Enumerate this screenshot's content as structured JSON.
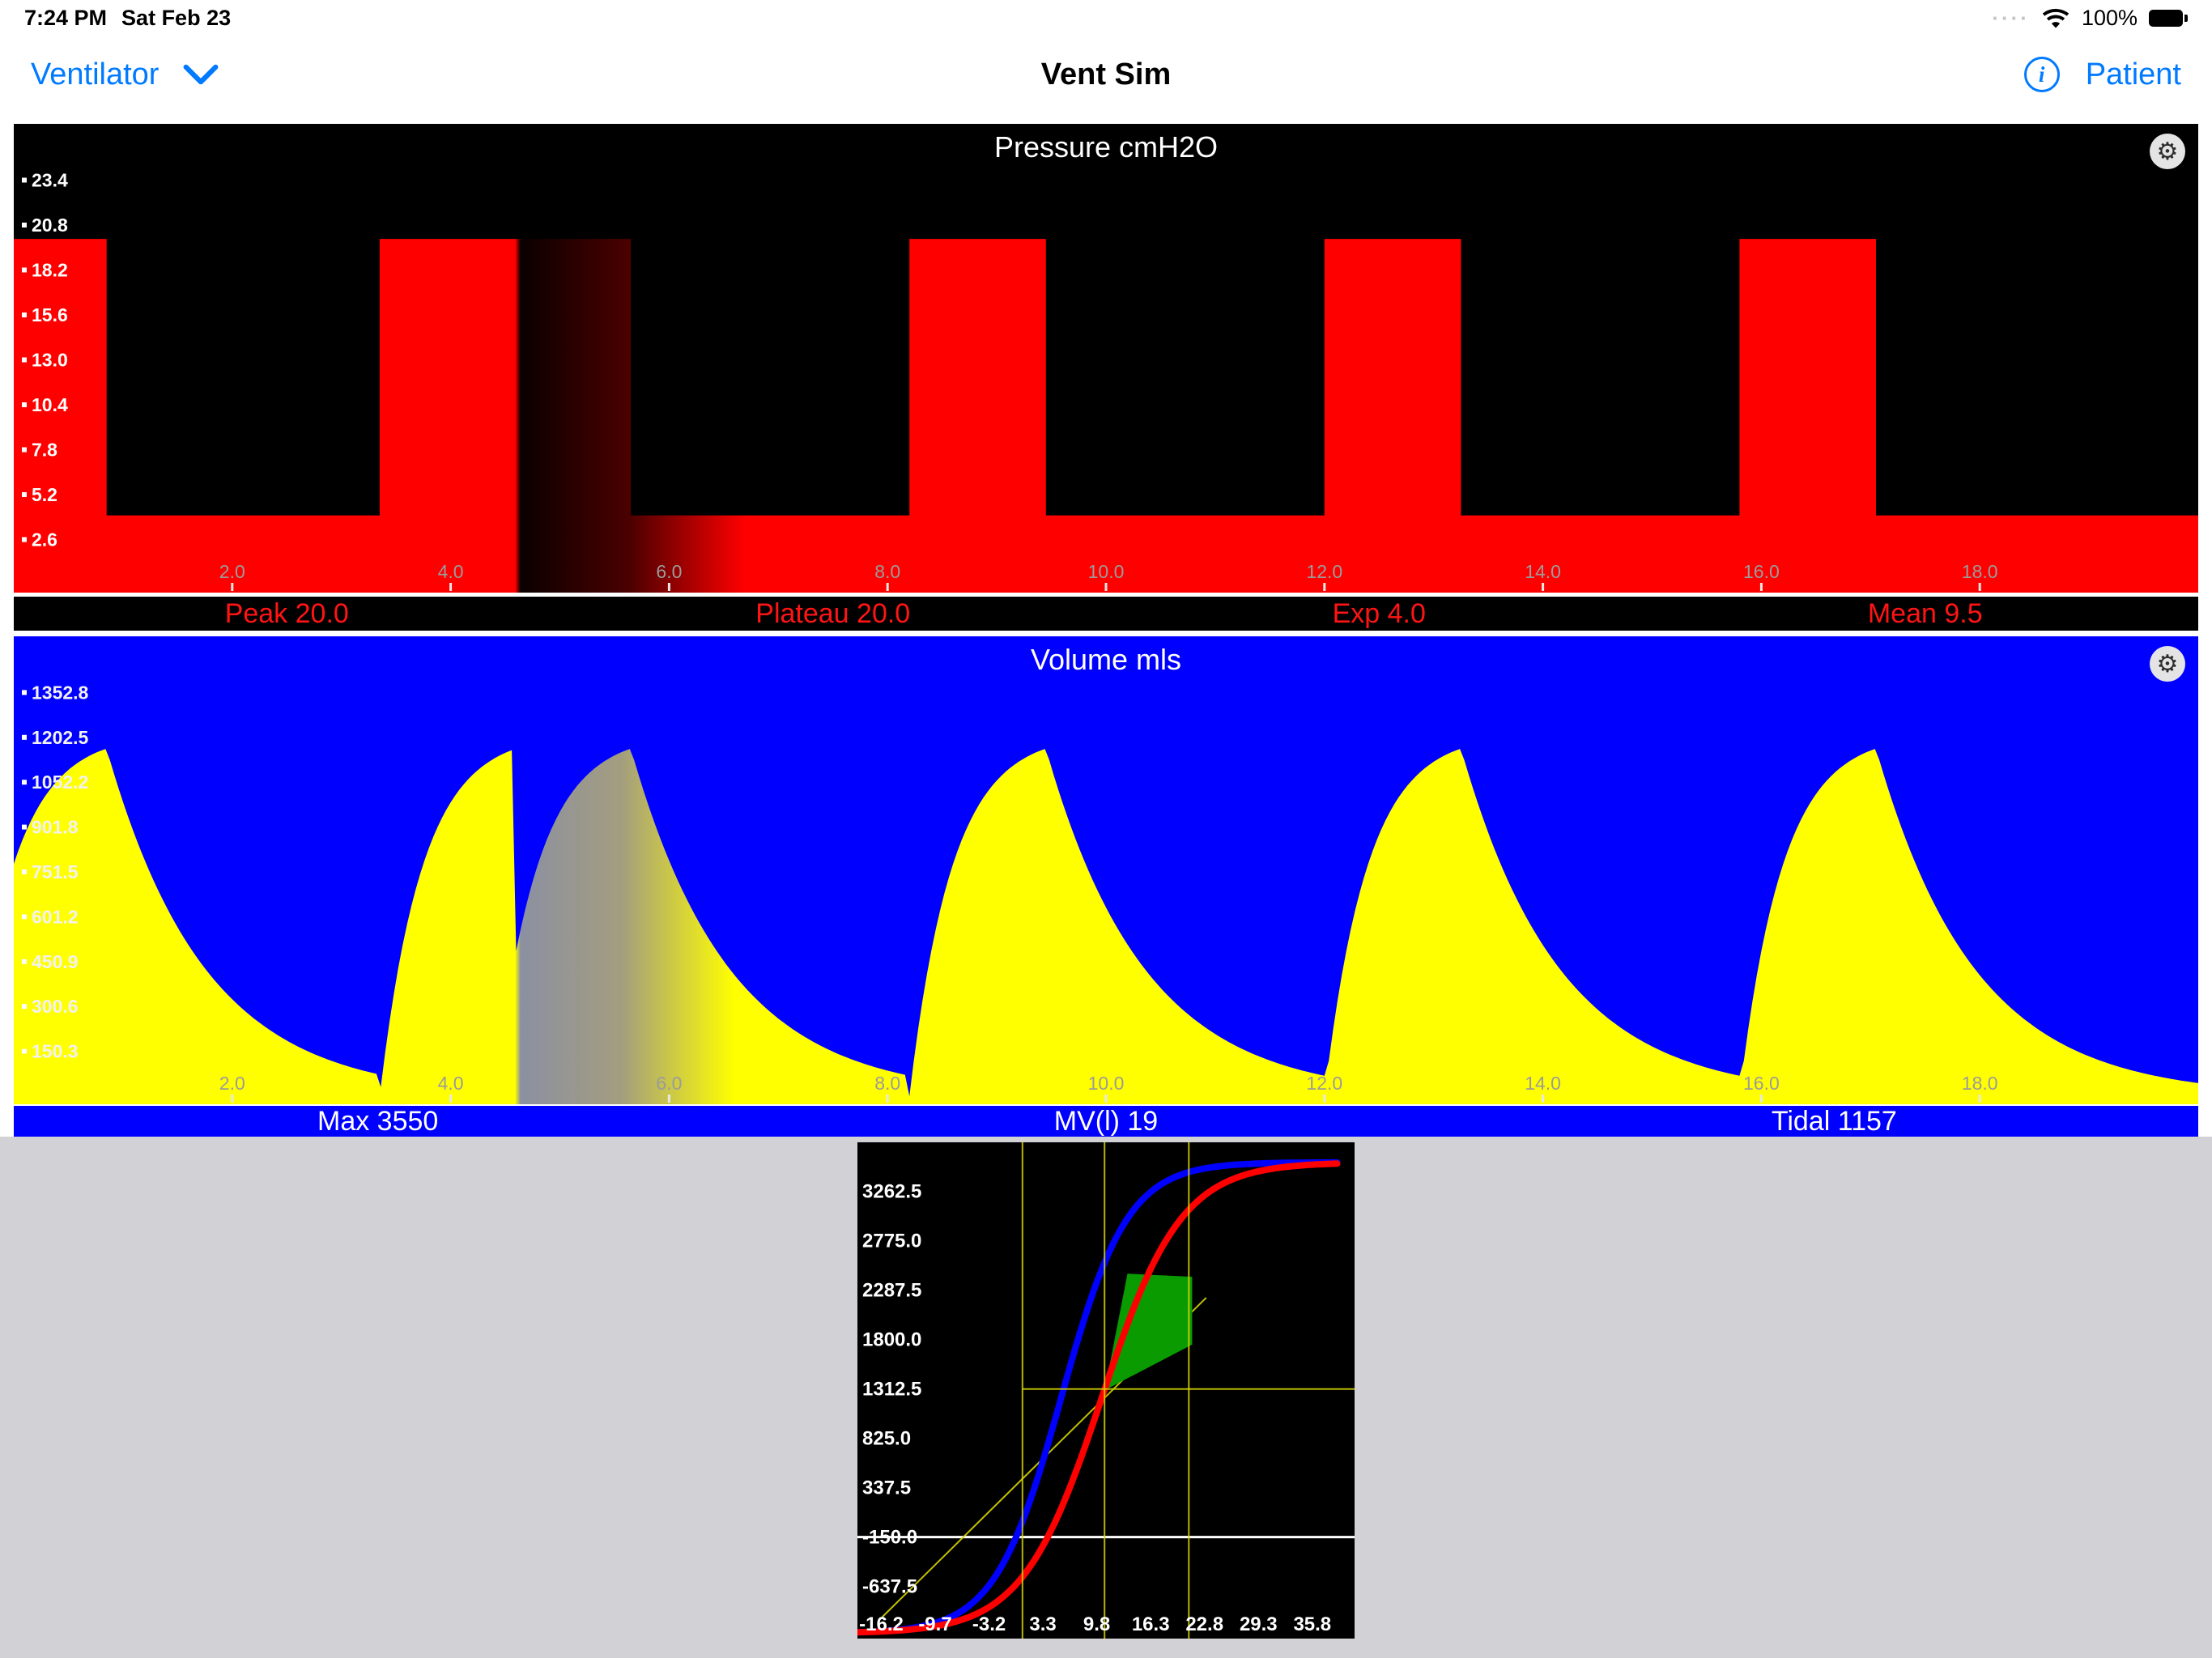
{
  "status_bar": {
    "time": "7:24 PM",
    "date": "Sat Feb 23",
    "battery_percent": "100%"
  },
  "nav_bar": {
    "ventilator_label": "Ventilator",
    "title": "Vent Sim",
    "patient_label": "Patient",
    "accent_color": "#007aff"
  },
  "icons": {
    "gear": "⚙",
    "info": "i",
    "cellular_dots": "····"
  },
  "chart_data": [
    {
      "id": "pressure",
      "type": "area",
      "title": "Pressure cmH2O",
      "bg": "#000000",
      "fill": "#ff0000",
      "label_color": "#9b9b9b",
      "tick_color": "#ffffff",
      "xlim": [
        0,
        20
      ],
      "ylim": [
        0,
        26
      ],
      "x_ticks": [
        2,
        4,
        6,
        8,
        10,
        12,
        14,
        16,
        18
      ],
      "y_ticks": [
        2.6,
        5.2,
        7.8,
        10.4,
        13.0,
        15.6,
        18.2,
        20.8,
        23.4
      ],
      "peak": 20,
      "peep": 4,
      "high_intervals": [
        [
          -0.4,
          0.85
        ],
        [
          3.35,
          5.65
        ],
        [
          8.2,
          9.45
        ],
        [
          12.0,
          13.25
        ],
        [
          15.8,
          17.05
        ]
      ],
      "sweep": {
        "cursor": 4.6,
        "erase_width": 2.0,
        "stops": [
          [
            0,
            "#ff0000"
          ],
          [
            0.2295,
            "#ff0000"
          ],
          [
            0.232,
            "#0b0000"
          ],
          [
            0.282,
            "#4b0000"
          ],
          [
            0.335,
            "#ff0000"
          ]
        ]
      },
      "stats": [
        "Peak 20.0",
        "Plateau 20.0",
        "Exp 4.0",
        "Mean 9.5"
      ]
    },
    {
      "id": "volume",
      "type": "area",
      "title": "Volume mls",
      "bg": "#0000ff",
      "fill": "#ffff00",
      "label_color": "#9b9b9b",
      "tick_color": "#f2f2f2",
      "xlim": [
        0,
        20
      ],
      "ylim": [
        0,
        1503
      ],
      "x_ticks": [
        2,
        4,
        6,
        8,
        10,
        12,
        14,
        16,
        18
      ],
      "y_ticks": [
        150.3,
        300.6,
        450.9,
        601.2,
        751.5,
        901.8,
        1052.2,
        1202.5,
        1352.8
      ],
      "tidal_peak": 1165,
      "insp_time": 1.25,
      "rise_k": 3.2,
      "decay_tau": 0.9,
      "breaths_new": [
        -0.4,
        3.35
      ],
      "breaths_old": [
        4.4,
        8.2,
        12.0,
        15.8
      ],
      "sweep": {
        "cursor": 4.6,
        "erase_width": 1.9,
        "stops": [
          [
            0,
            "#ffff00"
          ],
          [
            0.2295,
            "#ffff00"
          ],
          [
            0.232,
            "#8b90a2"
          ],
          [
            0.278,
            "#a39d7f"
          ],
          [
            0.33,
            "#ffff00"
          ]
        ]
      },
      "stats": [
        "Max 3550",
        "MV(l) 19",
        "Tidal 1157"
      ]
    },
    {
      "id": "loop",
      "type": "line",
      "name": "compliance-loop",
      "bg": "#000000",
      "y_ticks": [
        "3262.5",
        "2775.0",
        "2287.5",
        "1800.0",
        "1312.5",
        "825.0",
        "337.5",
        "-150.0",
        "-637.5"
      ],
      "x_ticks": [
        "-16.2",
        "-9.7",
        "-3.2",
        "3.3",
        "9.8",
        "16.3",
        "22.8",
        "29.3",
        "35.8"
      ],
      "x_value_range": [
        -16.2,
        35.8
      ],
      "map": {
        "x_frac_start": 0.048,
        "x_frac_end": 0.915,
        "y_frac_start": 0.099,
        "y_frac_end": 0.895,
        "y_val_top": 3262.5,
        "y_val_bottom": -637.5
      },
      "curves": [
        {
          "name": "inflation-limb",
          "color": "#0000ff",
          "vmin": -1100,
          "vmax": 3550,
          "p0": 5.5,
          "k": 4.0
        },
        {
          "name": "deflation-limb",
          "color": "#ff0000",
          "vmin": -1100,
          "vmax": 3550,
          "p0": 10.4,
          "k": 4.8
        }
      ],
      "axis_hline_value": -150,
      "guides": {
        "color": "#d6d600",
        "vline_pressures": [
          0.83,
          10.73,
          20.9
        ],
        "hline_volume": 1312.5,
        "hline_from_pressure": 0.83,
        "diagonal": {
          "from": [
            -16.1,
            -940
          ],
          "to": [
            23.0,
            2214
          ]
        }
      },
      "green_area_pv": [
        [
          10.75,
          1300
        ],
        [
          13.5,
          2450
        ],
        [
          21.3,
          2420
        ],
        [
          21.3,
          1750
        ]
      ],
      "green_color": "#0a9b00"
    }
  ]
}
